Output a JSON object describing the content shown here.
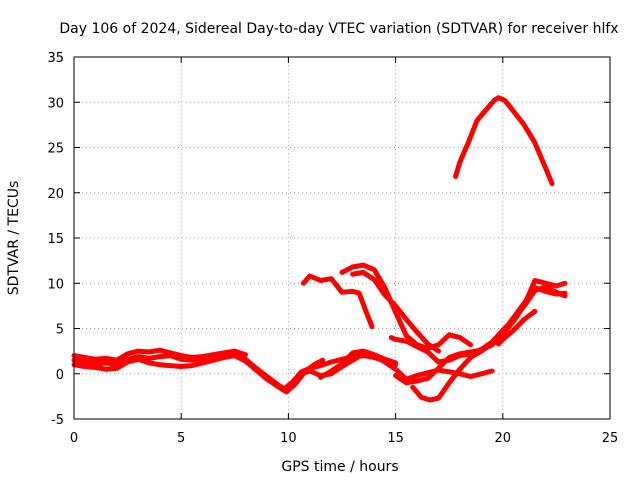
{
  "chart_data": {
    "type": "line",
    "title": "Day 106 of 2024, Sidereal Day-to-day VTEC variation (SDTVAR) for receiver hlfx",
    "xlabel": "GPS time / hours",
    "ylabel": "SDTVAR / TECUs",
    "xlim": [
      0,
      25
    ],
    "ylim": [
      -5,
      35
    ],
    "xticks": [
      0,
      5,
      10,
      15,
      20,
      25
    ],
    "yticks": [
      -5,
      0,
      5,
      10,
      15,
      20,
      25,
      30,
      35
    ],
    "grid": true,
    "line_color": "#ff0000",
    "series": [
      {
        "name": "track-1",
        "x": [
          0.0,
          0.5,
          1.0,
          1.5,
          2.0,
          2.5,
          3.0,
          3.5,
          4.0,
          4.5,
          5.0,
          5.5,
          6.0,
          6.5,
          7.0,
          7.5,
          8.0,
          8.5,
          9.0,
          9.5,
          9.8,
          10.2,
          10.6,
          11.0,
          11.5,
          12.0,
          12.5,
          13.0,
          13.5,
          14.0,
          14.5,
          15.0
        ],
        "y": [
          1.5,
          1.3,
          1.1,
          1.2,
          1.0,
          1.6,
          1.9,
          1.7,
          1.9,
          2.0,
          1.6,
          1.5,
          1.7,
          2.0,
          2.2,
          2.0,
          1.6,
          0.6,
          -0.3,
          -1.2,
          -1.7,
          -0.9,
          0.2,
          0.6,
          0.9,
          1.3,
          1.6,
          1.9,
          2.0,
          1.8,
          1.4,
          1.0
        ]
      },
      {
        "name": "track-2",
        "x": [
          0.0,
          0.5,
          1.0,
          1.5,
          2.0,
          2.5,
          3.0,
          3.5,
          4.0,
          4.5,
          5.0,
          5.5,
          6.0,
          6.5,
          7.0,
          7.5,
          8.0,
          8.5,
          9.0,
          9.5,
          9.9,
          10.3,
          10.8,
          11.2,
          11.6
        ],
        "y": [
          1.0,
          0.8,
          0.7,
          0.5,
          0.6,
          1.3,
          1.6,
          1.2,
          1.0,
          0.9,
          0.8,
          0.9,
          1.2,
          1.5,
          1.8,
          2.0,
          1.4,
          0.4,
          -0.6,
          -1.4,
          -2.0,
          -1.2,
          0.3,
          1.0,
          1.5
        ]
      },
      {
        "name": "track-3",
        "x": [
          0.0,
          0.5,
          1.0,
          1.5,
          2.0,
          2.5,
          3.0,
          3.5,
          4.0,
          4.5,
          5.0,
          5.5,
          6.0,
          6.5,
          7.0,
          7.5,
          8.0
        ],
        "y": [
          2.0,
          1.8,
          1.6,
          1.7,
          1.5,
          2.2,
          2.5,
          2.4,
          2.6,
          2.3,
          2.0,
          1.8,
          1.9,
          2.1,
          2.3,
          2.5,
          2.1
        ]
      },
      {
        "name": "track-4",
        "x": [
          10.6,
          11.0,
          11.5,
          12.0,
          12.5,
          13.0,
          13.5,
          14.0,
          14.5,
          15.0,
          15.5,
          16.0,
          16.5,
          17.0,
          17.5,
          18.0,
          18.5,
          19.0,
          19.5
        ],
        "y": [
          0.0,
          0.3,
          -0.2,
          0.0,
          0.8,
          1.5,
          2.2,
          2.0,
          1.3,
          0.5,
          -0.6,
          -0.2,
          0.1,
          0.4,
          0.2,
          0.0,
          -0.3,
          0.0,
          0.3
        ]
      },
      {
        "name": "track-5",
        "x": [
          11.5,
          12.0,
          12.5,
          13.0,
          13.5,
          14.0,
          14.5,
          15.0
        ],
        "y": [
          -0.4,
          0.3,
          1.1,
          2.3,
          2.5,
          2.1,
          1.6,
          1.2
        ]
      },
      {
        "name": "track-6",
        "x": [
          10.7,
          11.0,
          11.5,
          12.0,
          12.5,
          13.0,
          13.3,
          13.6,
          13.9
        ],
        "y": [
          10.0,
          10.8,
          10.3,
          10.5,
          9.0,
          9.1,
          8.9,
          7.0,
          5.2
        ]
      },
      {
        "name": "track-7",
        "x": [
          12.5,
          13.0,
          13.5,
          14.0,
          14.5,
          15.0,
          15.5,
          16.0,
          16.5,
          17.0,
          17.5,
          18.0,
          18.5
        ],
        "y": [
          11.2,
          11.8,
          12.0,
          11.5,
          9.5,
          6.8,
          4.2,
          3.2,
          2.8,
          3.2,
          4.3,
          4.0,
          3.2
        ]
      },
      {
        "name": "track-8",
        "x": [
          13.0,
          13.5,
          14.0,
          14.5,
          15.0,
          15.5,
          16.0,
          16.5,
          17.0
        ],
        "y": [
          11.0,
          11.2,
          10.4,
          8.7,
          7.5,
          6.0,
          4.6,
          3.3,
          2.5
        ]
      },
      {
        "name": "track-9",
        "x": [
          14.8,
          15.0,
          15.5,
          16.0,
          16.5,
          17.0,
          17.5,
          18.0,
          18.5,
          19.0,
          19.5,
          20.0,
          20.5,
          21.0,
          21.5,
          22.0,
          22.5,
          22.9
        ],
        "y": [
          4.0,
          3.8,
          3.6,
          3.0,
          2.4,
          1.3,
          1.5,
          2.0,
          2.2,
          2.7,
          3.5,
          4.8,
          6.0,
          7.5,
          9.2,
          9.6,
          9.0,
          8.6
        ]
      },
      {
        "name": "track-10",
        "x": [
          15.0,
          15.5,
          16.0,
          16.5,
          17.0,
          17.5,
          18.0,
          18.5,
          19.0,
          19.5,
          20.0,
          20.5,
          21.0,
          21.5,
          22.0,
          22.5,
          22.9
        ],
        "y": [
          -0.2,
          -1.0,
          -0.8,
          -0.5,
          0.6,
          1.8,
          2.2,
          2.4,
          2.6,
          3.2,
          4.4,
          5.8,
          7.6,
          10.3,
          10.0,
          9.7,
          10.0
        ]
      },
      {
        "name": "track-11",
        "x": [
          15.8,
          16.2,
          16.6,
          17.0,
          17.5,
          18.0,
          18.5,
          19.0,
          19.5,
          20.0,
          20.5,
          21.0,
          21.5,
          22.0,
          22.5,
          22.9
        ],
        "y": [
          -1.5,
          -2.6,
          -2.9,
          -2.7,
          -1.0,
          0.5,
          1.8,
          2.5,
          3.4,
          4.6,
          6.2,
          7.8,
          9.5,
          9.1,
          8.8,
          8.9
        ]
      },
      {
        "name": "track-12",
        "x": [
          19.8,
          20.0,
          20.5,
          21.0,
          21.5
        ],
        "y": [
          3.3,
          3.8,
          4.8,
          6.0,
          6.9
        ]
      },
      {
        "name": "track-13",
        "x": [
          17.8,
          18.0,
          18.4,
          18.8,
          19.2,
          19.6,
          19.8,
          20.1,
          20.5,
          21.0,
          21.5,
          22.0,
          22.3
        ],
        "y": [
          21.8,
          23.4,
          25.6,
          28.0,
          29.1,
          30.2,
          30.5,
          30.2,
          29.0,
          27.5,
          25.5,
          22.7,
          21.0
        ]
      }
    ]
  }
}
